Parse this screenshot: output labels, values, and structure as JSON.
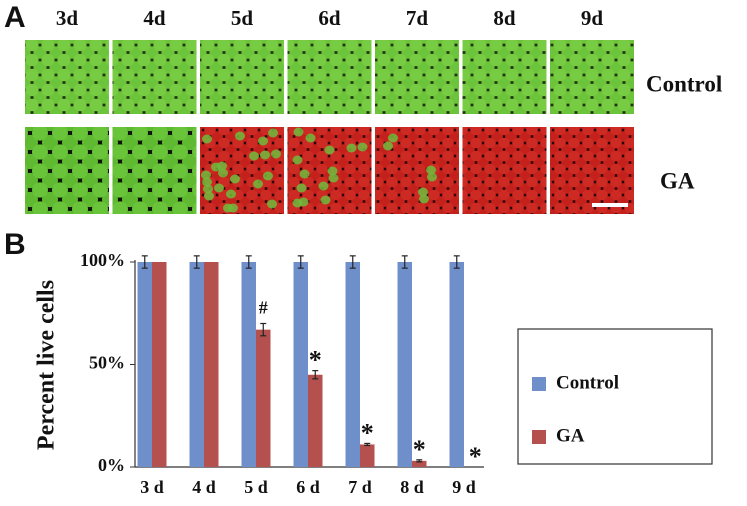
{
  "panel_labels": [
    "A",
    "B"
  ],
  "images": {
    "columns": [
      "3d",
      "4d",
      "5d",
      "6d",
      "7d",
      "8d",
      "9d"
    ],
    "rows": [
      "Control",
      "GA"
    ]
  },
  "chart_data": {
    "type": "bar",
    "ylabel": "Percent live cells",
    "categories": [
      "3 d",
      "4 d",
      "5 d",
      "6 d",
      "7 d",
      "8 d",
      "9 d"
    ],
    "series": [
      {
        "name": "Control",
        "color": "#6f8fcb",
        "values": [
          100,
          100,
          100,
          100,
          100,
          100,
          100
        ],
        "errors": [
          3,
          3,
          3,
          3,
          3,
          3,
          3
        ]
      },
      {
        "name": "GA",
        "color": "#b4514f",
        "values": [
          100,
          100,
          67,
          45,
          11,
          3,
          0
        ],
        "errors": [
          null,
          null,
          3,
          2,
          0.5,
          0.5,
          null
        ],
        "markers": [
          null,
          null,
          "#",
          "*",
          "*",
          "*",
          "*"
        ]
      }
    ],
    "ylim": [
      0,
      100
    ],
    "yticks": [
      {
        "value": 0,
        "label": "0%"
      },
      {
        "value": 50,
        "label": "50%"
      },
      {
        "value": 100,
        "label": "100%"
      }
    ]
  }
}
